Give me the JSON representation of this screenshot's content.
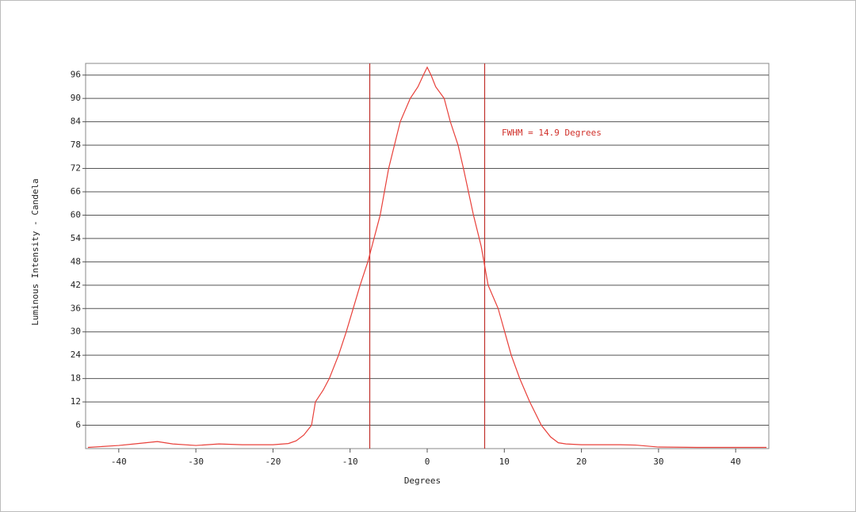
{
  "chart_data": {
    "type": "line",
    "x_label": "Degrees",
    "y_label": "Luminous Intensity - Candela",
    "annotation": "FWHM = 14.9 Degrees",
    "x": [
      -44,
      -40,
      -38,
      -35,
      -33,
      -30,
      -27,
      -24,
      -20,
      -18,
      -17,
      -16,
      -15,
      -14.5,
      -13.5,
      -12.7,
      -11.5,
      -10.5,
      -9.6,
      -8.7,
      -7.7,
      -6.1,
      -5,
      -4,
      -3.5,
      -2.2,
      -1.2,
      -0.5,
      0,
      0.5,
      1.1,
      2.2,
      3,
      4,
      4.7,
      6,
      7,
      7.9,
      9.2,
      10.9,
      12,
      13.3,
      14.8,
      16,
      17,
      18,
      20,
      25,
      27,
      30,
      35,
      40,
      44
    ],
    "series": [
      {
        "color": "#e8403a",
        "values": [
          0.3,
          0.8,
          1.2,
          1.8,
          1.2,
          0.8,
          1.2,
          1.0,
          1.0,
          1.3,
          2,
          3.5,
          6,
          12,
          15,
          18,
          24,
          30,
          36,
          42,
          48,
          60,
          72,
          80,
          84,
          90,
          93,
          96,
          98,
          96,
          93,
          90,
          84,
          78,
          72,
          60,
          52,
          42,
          36,
          24,
          18,
          12,
          6,
          3,
          1.5,
          1.2,
          1,
          1,
          0.9,
          0.4,
          0.3,
          0.3,
          0.3
        ]
      }
    ],
    "vlines": [
      -7.45,
      7.45
    ],
    "vline_color": "#c0302a",
    "xlim": [
      -44.3,
      44.3
    ],
    "ylim": [
      0,
      99
    ],
    "xticks": [
      -40,
      -30,
      -20,
      -10,
      0,
      10,
      20,
      30,
      40
    ],
    "yticks": [
      6,
      12,
      18,
      24,
      30,
      36,
      42,
      48,
      54,
      60,
      66,
      72,
      78,
      84,
      90,
      96
    ],
    "grid": true
  }
}
